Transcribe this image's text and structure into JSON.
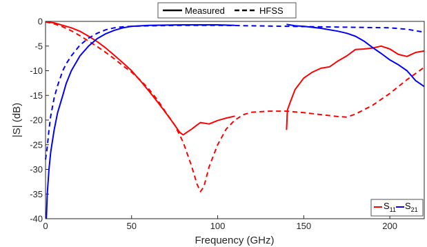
{
  "chart_data": {
    "type": "line",
    "xlabel": "Frequency (GHz)",
    "ylabel": "|S| (dB)",
    "xlim": [
      0,
      220
    ],
    "ylim": [
      -40,
      0
    ],
    "xticks": [
      "0",
      "50",
      "100",
      "150",
      "200"
    ],
    "yticks": [
      "0",
      "-5",
      "-10",
      "-15",
      "-20",
      "-25",
      "-30",
      "-35",
      "-40"
    ],
    "grid": false,
    "legend_style": {
      "position": "top-center",
      "entries": [
        {
          "label": "Measured",
          "style": "solid"
        },
        {
          "label": "HFSS",
          "style": "dashed"
        }
      ]
    },
    "legend_params": {
      "position": "bottom-right",
      "entries": [
        {
          "base": "S",
          "sub": "11",
          "color": "#ff0000"
        },
        {
          "base": "S",
          "sub": "21",
          "color": "#0000ff"
        }
      ]
    },
    "series": [
      {
        "name": "S11",
        "source": "Measured",
        "color": "#ff0000",
        "style": "solid",
        "segments": [
          {
            "x": [
              0,
              5,
              10,
              15,
              20,
              25,
              30,
              35,
              40,
              45,
              50,
              55,
              60,
              65,
              70,
              75,
              78,
              80,
              82,
              85,
              88,
              90,
              95,
              100,
              105,
              110
            ],
            "y": [
              -0.1,
              -0.3,
              -0.8,
              -1.3,
              -2.0,
              -3.0,
              -4.1,
              -5.4,
              -6.9,
              -8.4,
              -10.0,
              -12.0,
              -14.1,
              -16.3,
              -18.6,
              -21.0,
              -22.5,
              -23.0,
              -22.5,
              -21.8,
              -21.0,
              -20.5,
              -20.8,
              -20.1,
              -19.6,
              -19.2
            ]
          },
          {
            "x": [
              140,
              140.5,
              142,
              145,
              150,
              155,
              160,
              165,
              170,
              175,
              180,
              185,
              190,
              195,
              200,
              205,
              210,
              215,
              220
            ],
            "y": [
              -22.0,
              -18.0,
              -16.5,
              -13.8,
              -11.5,
              -10.3,
              -9.5,
              -9.2,
              -8.0,
              -7.0,
              -5.7,
              -5.6,
              -5.4,
              -5.0,
              -5.6,
              -6.7,
              -7.1,
              -6.3,
              -6.0
            ]
          }
        ]
      },
      {
        "name": "S11",
        "source": "HFSS",
        "color": "#ff0000",
        "style": "dashed",
        "segments": [
          {
            "x": [
              0,
              5,
              10,
              15,
              20,
              25,
              30,
              35,
              40,
              45,
              50,
              55,
              60,
              65,
              70,
              75,
              80,
              85,
              88,
              90,
              92,
              95,
              100,
              105,
              110,
              115,
              120,
              130,
              140,
              150,
              160,
              170,
              175,
              180,
              190,
              200,
              210,
              220
            ],
            "y": [
              -0.1,
              -0.5,
              -1.1,
              -1.9,
              -2.9,
              -4.0,
              -5.1,
              -6.3,
              -7.6,
              -9.0,
              -10.3,
              -11.9,
              -13.7,
              -15.9,
              -18.5,
              -21.0,
              -24.5,
              -29.5,
              -33.0,
              -34.5,
              -33.5,
              -29.5,
              -25.0,
              -21.8,
              -20.0,
              -18.9,
              -18.4,
              -18.2,
              -18.2,
              -18.5,
              -18.9,
              -19.3,
              -19.4,
              -18.8,
              -17.0,
              -14.6,
              -11.8,
              -9.3
            ]
          }
        ]
      },
      {
        "name": "S21",
        "source": "Measured",
        "color": "#0000ff",
        "style": "solid",
        "segments": [
          {
            "x": [
              0.5,
              1,
              2,
              3,
              5,
              7,
              10,
              12,
              15,
              20,
              25,
              30,
              35,
              40,
              45,
              50,
              60,
              80,
              100,
              110
            ],
            "y": [
              -40.0,
              -35.0,
              -30.0,
              -26.5,
              -22.0,
              -18.5,
              -15.0,
              -12.6,
              -10.0,
              -7.0,
              -5.0,
              -3.5,
              -2.5,
              -1.8,
              -1.3,
              -1.0,
              -0.8,
              -0.7,
              -0.7,
              -0.8
            ]
          },
          {
            "x": [
              140,
              145,
              150,
              160,
              170,
              175,
              180,
              185,
              190,
              195,
              200,
              205,
              210,
              215,
              220
            ],
            "y": [
              -0.6,
              -0.9,
              -1.0,
              -1.4,
              -2.0,
              -2.4,
              -3.0,
              -4.0,
              -5.3,
              -6.5,
              -7.8,
              -8.8,
              -10.0,
              -12.0,
              -13.2
            ]
          }
        ]
      },
      {
        "name": "S21",
        "source": "HFSS",
        "color": "#0000ff",
        "style": "dashed",
        "segments": [
          {
            "x": [
              0,
              1,
              2,
              3,
              5,
              7,
              10,
              12,
              15,
              20,
              25,
              30,
              35,
              40,
              45,
              50,
              60,
              80,
              100,
              120,
              140,
              160,
              180,
              200,
              210,
              220
            ],
            "y": [
              -28.0,
              -25.5,
              -22.0,
              -19.2,
              -15.5,
              -13.0,
              -10.0,
              -8.6,
              -7.0,
              -4.8,
              -3.4,
              -2.4,
              -1.7,
              -1.3,
              -1.1,
              -1.0,
              -0.9,
              -0.8,
              -0.8,
              -0.9,
              -1.0,
              -1.1,
              -1.2,
              -1.3,
              -1.6,
              -2.2
            ]
          }
        ]
      }
    ]
  }
}
